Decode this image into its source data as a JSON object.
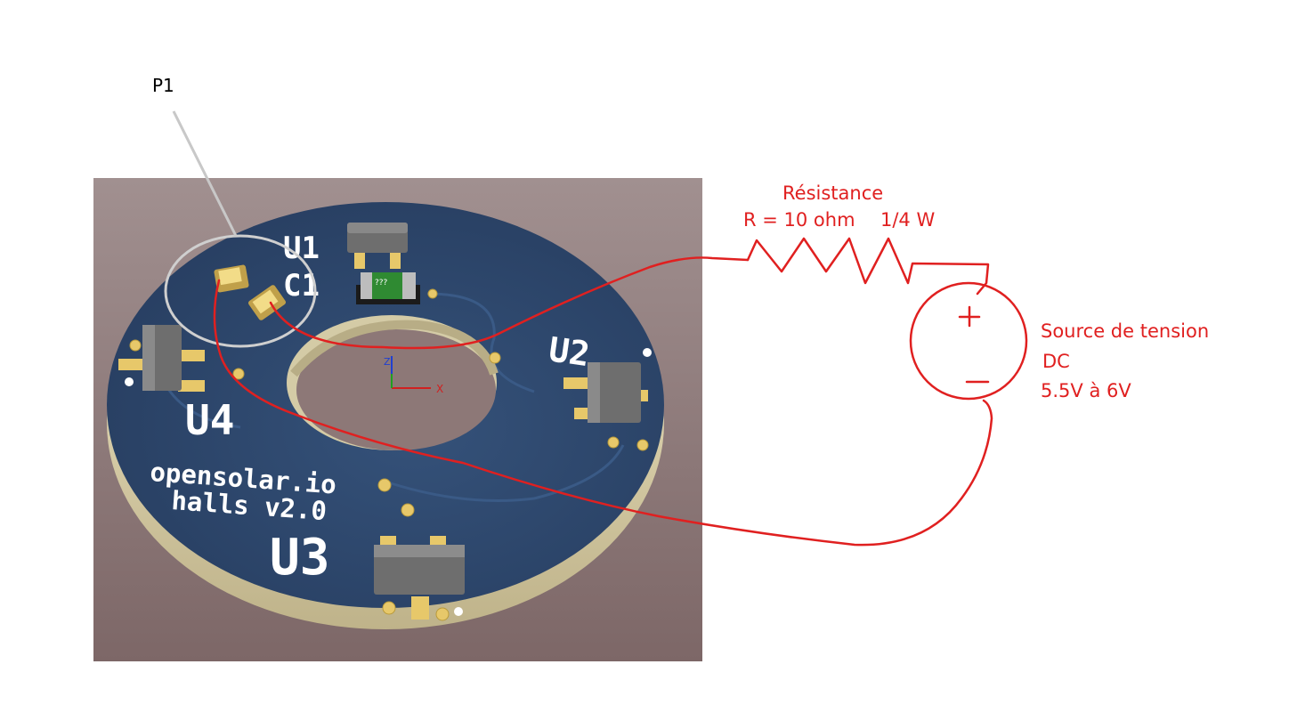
{
  "callout": {
    "label": "P1"
  },
  "resistor": {
    "title": "Résistance",
    "value": "R = 10 ohm",
    "power": "1/4 W"
  },
  "source": {
    "line1": "Source de tension",
    "line2": "DC",
    "line3": "5.5V à 6V",
    "plus": "+",
    "minus": "−"
  },
  "pcb": {
    "refs": {
      "u1": "U1",
      "c1": "C1",
      "u2": "U2",
      "u3": "U3",
      "u4": "U4"
    },
    "silkscreen_line1": "opensolar.io",
    "silkscreen_line2": "halls v2.0",
    "cap_mark": "???",
    "axis_z": "Z",
    "axis_x": "X"
  },
  "colors": {
    "viewport_bg": "#8d7877",
    "board": "#2f4a6e",
    "board_edge": "#d9cfa6",
    "pad": "#e7c86a",
    "wire": "#e02020"
  }
}
